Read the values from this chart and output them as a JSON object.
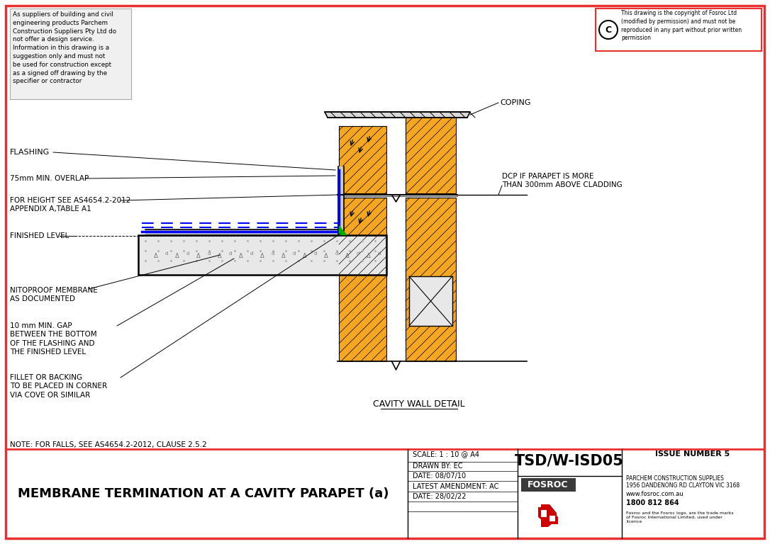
{
  "title": "MEMBRANE TERMINATION AT A CAVITY PARAPET (a)",
  "drawing_id": "TSD/W-ISD05",
  "issue": "ISSUE NUMBER 5",
  "scale": "SCALE: 1 : 10 @ A4",
  "drawn_by": "DRAWN BY: EC",
  "date": "DATE: 08/07/10",
  "latest_amendment": "LATEST AMENDMENT: AC",
  "date2": "DATE: 28/02/22",
  "note": "NOTE: FOR FALLS, SEE AS4654.2-2012, CLAUSE 2.5.2",
  "disclaimer": "As suppliers of building and civil\nengineering products Parchem\nConstruction Suppliers Pty Ltd do\nnot offer a design service.\nInformation in this drawing is a\nsuggestion only and must not\nbe used for construction except\nas a signed off drawing by the\nspecifier or contractor",
  "copyright": "This drawing is the copyright of Fosroc Ltd\n(modified by permission) and must not be\nreproduced in any part without prior written\npermission",
  "company_name": "PARCHEM CONSTRUCTION SUPPLIES",
  "company_address": "1956 DANDENONG RD CLAYTON VIC 3168",
  "website": "www.fosroc.com.au",
  "phone": "1800 812 864",
  "trademark": "Fosroc and the Fosroc logo, are the trade marks\nof Fosroc International Limited, used under\nlicence",
  "labels": {
    "coping": "COPING",
    "flashing": "FLASHING",
    "overlap": "75mm MIN. OVERLAP",
    "height_ref": "FOR HEIGHT SEE AS4654.2-2012\nAPPENDIX A,TABLE A1",
    "finished_level": "FINISHED LEVEL",
    "nitoproof": "NITOPROOF MEMBRANE\nAS DOCUMENTED",
    "gap": "10 mm MIN. GAP\nBETWEEN THE BOTTOM\nOF THE FLASHING AND\nTHE FINISHED LEVEL",
    "fillet": "FILLET OR BACKING\nTO BE PLACED IN CORNER\nVIA COVE OR SIMILAR",
    "dcp": "DCP IF PARAPET IS MORE\nTHAN 300mm ABOVE CLADDING",
    "cavity": "CAVITY WALL DETAIL"
  },
  "border_color": "#e83030",
  "hatch_color": "#f5a623",
  "bg_color": "#ffffff",
  "line_color": "#000000",
  "blue_color": "#0000ff",
  "green_color": "#00aa00",
  "gray_color": "#888888",
  "light_gray": "#d8d8d8",
  "fosroc_dark": "#3a3a3a",
  "fosroc_red": "#cc0000"
}
